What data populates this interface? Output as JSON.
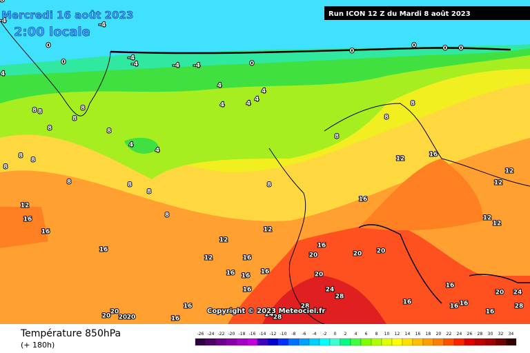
{
  "header": {
    "date": "Mercredi 16 août 2023",
    "time": "2:00 locale",
    "run": "Run ICON 12 Z du Mardi 8 août 2023"
  },
  "copyright": "Copyright © 2023 Meteociel.fr",
  "footer": {
    "title": "Température 850hPa",
    "lead": "(+ 180h)"
  },
  "legend": {
    "values": [
      -26,
      -24,
      -22,
      -20,
      -18,
      -16,
      -14,
      -12,
      -10,
      -8,
      -6,
      -4,
      -2,
      0,
      2,
      4,
      6,
      8,
      10,
      12,
      14,
      16,
      18,
      20,
      22,
      24,
      26,
      28,
      30,
      32,
      34
    ],
    "colors": [
      "#2d0040",
      "#4b0066",
      "#6a0087",
      "#8a00a8",
      "#a400c6",
      "#c000e0",
      "#4000c0",
      "#0000d0",
      "#0030ff",
      "#0070ff",
      "#00a0ff",
      "#00d0ff",
      "#00ffff",
      "#40ffd0",
      "#00ff80",
      "#40ff40",
      "#80ff00",
      "#b0ff00",
      "#e0ff00",
      "#ffff00",
      "#ffe000",
      "#ffc000",
      "#ffa000",
      "#ff8000",
      "#ff5000",
      "#ff2000",
      "#e00000",
      "#c00000",
      "#a00000",
      "#700000",
      "#300000"
    ]
  },
  "map_labels": [
    -4,
    -4,
    -4,
    -4,
    -4,
    -4,
    0,
    0,
    0,
    0,
    0,
    0,
    0,
    4,
    4,
    4,
    4,
    4,
    4,
    4,
    4,
    8,
    8,
    8,
    8,
    8,
    8,
    8,
    8,
    8,
    8,
    8,
    8,
    8,
    8,
    8,
    8,
    8,
    12,
    12,
    12,
    12,
    12,
    12,
    12,
    12,
    12,
    16,
    16,
    16,
    16,
    16,
    16,
    16,
    16,
    16,
    16,
    16,
    16,
    16,
    16,
    16,
    16,
    16,
    16,
    20,
    20,
    20,
    20,
    20,
    20,
    20,
    20,
    20,
    24,
    24,
    28,
    28,
    28,
    28,
    24,
    28
  ]
}
